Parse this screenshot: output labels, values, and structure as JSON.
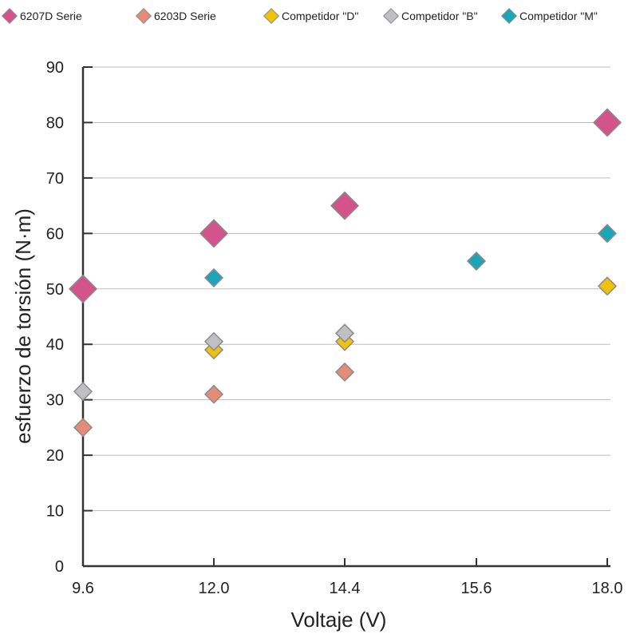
{
  "chart_data": {
    "type": "scatter",
    "xlabel": "Voltaje (V)",
    "ylabel": "esfuerzo de torsión (N·m)",
    "x_ticks": [
      "9.6",
      "12.0",
      "14.4",
      "15.6",
      "18.0"
    ],
    "y_ticks": [
      "0",
      "10",
      "20",
      "30",
      "40",
      "50",
      "60",
      "70",
      "80",
      "90"
    ],
    "ylim": [
      0,
      90
    ],
    "grid": true,
    "legend_position": "top",
    "series": [
      {
        "name": "6207D Serie",
        "color": "#d4538a",
        "marker": "diamond-large",
        "points": [
          {
            "x": "9.6",
            "y": 50
          },
          {
            "x": "12.0",
            "y": 60
          },
          {
            "x": "14.4",
            "y": 65
          },
          {
            "x": "18.0",
            "y": 80
          }
        ]
      },
      {
        "name": "6203D Serie",
        "color": "#e38d78",
        "marker": "diamond",
        "points": [
          {
            "x": "9.6",
            "y": 25
          },
          {
            "x": "12.0",
            "y": 31
          },
          {
            "x": "14.4",
            "y": 35
          }
        ]
      },
      {
        "name": "Competidor \"D\"",
        "color": "#f0c20a",
        "marker": "diamond",
        "points": [
          {
            "x": "12.0",
            "y": 39
          },
          {
            "x": "14.4",
            "y": 40.5
          },
          {
            "x": "18.0",
            "y": 50.5
          }
        ]
      },
      {
        "name": "Competidor \"B\"",
        "color": "#c0c0c4",
        "marker": "diamond",
        "points": [
          {
            "x": "9.6",
            "y": 31.5
          },
          {
            "x": "12.0",
            "y": 40.5
          },
          {
            "x": "14.4",
            "y": 42
          }
        ]
      },
      {
        "name": "Competidor \"M\"",
        "color": "#1ba5b8",
        "marker": "diamond",
        "points": [
          {
            "x": "12.0",
            "y": 52
          },
          {
            "x": "15.6",
            "y": 55
          },
          {
            "x": "18.0",
            "y": 60
          }
        ]
      }
    ]
  }
}
